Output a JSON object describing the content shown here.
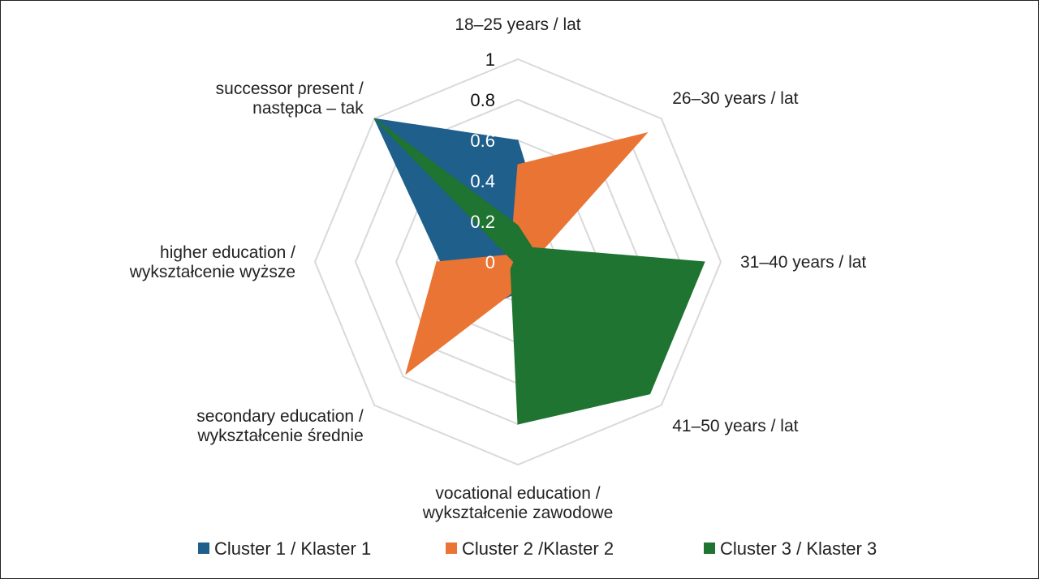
{
  "chart_data": {
    "type": "radar",
    "axes": [
      "18–25 years / lat",
      "26–30 years / lat",
      "31–40 years / lat",
      "41–50 years / lat",
      "vocational education / wykształcenie zawodowe",
      "secondary education / wykształcenie średnie",
      "higher education / wykształcenie wyższe",
      "successor present / następca – tak"
    ],
    "axis_label_lines": [
      [
        "18–25 years / lat"
      ],
      [
        "26–30 years / lat"
      ],
      [
        "31–40 years / lat"
      ],
      [
        "41–50 years / lat"
      ],
      [
        "vocational education /",
        "wykształcenie zawodowe"
      ],
      [
        "secondary education /",
        "wykształcenie średnie"
      ],
      [
        "higher education /",
        "wykształcenie wyższe"
      ],
      [
        "successor present /",
        "następca – tak"
      ]
    ],
    "r_ticks": [
      "0",
      "0.2",
      "0.4",
      "0.6",
      "0.8",
      "1"
    ],
    "r_range": [
      0,
      1
    ],
    "series": [
      {
        "name": "Cluster 1 / Klaster 1",
        "color": "#1f5f8b",
        "values": [
          0.6,
          0.2,
          0.07,
          0.15,
          0.15,
          0.4,
          0.38,
          1.0
        ]
      },
      {
        "name": "Cluster 2 /Klaster 2",
        "color": "#ea7433",
        "values": [
          0.48,
          0.9,
          0.07,
          0.1,
          0.13,
          0.78,
          0.4,
          0.05
        ]
      },
      {
        "name": "Cluster 3 / Klaster 3",
        "color": "#1e7430",
        "values": [
          0.18,
          0.1,
          0.92,
          0.92,
          0.8,
          0.05,
          0.02,
          1.0
        ]
      }
    ],
    "grid": true,
    "legend_position": "bottom"
  }
}
